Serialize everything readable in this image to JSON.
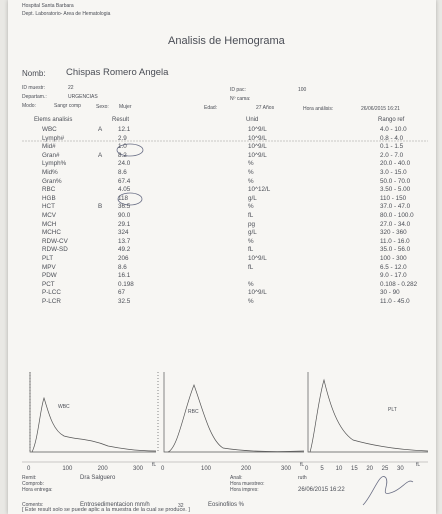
{
  "header": {
    "hospital": "Hospital Santa Barbara",
    "department": "Dept. Laboratorio- Area de Hematologia",
    "title": "Analisis de Hemograma"
  },
  "patient": {
    "name_label": "Nomb:",
    "name": "Chispas Romero Angela",
    "sample_id_label": "ID muestr:",
    "sample_id": "22",
    "patient_id_label": "ID pac:",
    "patient_id": "100",
    "dept_label": "Departam.:",
    "dept": "URGENCIAS",
    "bed_label": "Nº cama:",
    "mode_label": "Modo:",
    "mode": "Sangr comp",
    "sex_label": "Sexo:",
    "sex": "Mujer",
    "age_label": "Edad:",
    "age": "27 Años",
    "time_label": "Hora análisis:",
    "time": "26/06/2015 16:21"
  },
  "table": {
    "columns": [
      "Elems analisis",
      "Result",
      "Unid",
      "Rango ref"
    ],
    "rows": [
      {
        "item": "WBC",
        "flag": "A",
        "result": "12.1",
        "unit": "10^9/L",
        "range": "4.0 - 10.0"
      },
      {
        "item": "Lymph#",
        "result": "2.9",
        "unit": "10^9/L",
        "range": "0.8 - 4.0"
      },
      {
        "item": "Mid#",
        "result": "1.0",
        "unit": "10^9/L",
        "range": "0.1 - 1.5"
      },
      {
        "item": "Gran#",
        "flag": "A",
        "result": "8.2",
        "unit": "10^9/L",
        "range": "2.0 - 7.0"
      },
      {
        "item": "Lymph%",
        "result": "24.0",
        "unit": "%",
        "range": "20.0 - 40.0"
      },
      {
        "item": "Mid%",
        "result": "8.6",
        "unit": "%",
        "range": "3.0 - 15.0"
      },
      {
        "item": "Gran%",
        "result": "67.4",
        "unit": "%",
        "range": "50.0 - 70.0"
      },
      {
        "item": "RBC",
        "result": "4.05",
        "unit": "10^12/L",
        "range": "3.50 - 5.00"
      },
      {
        "item": "HGB",
        "result": "118",
        "unit": "g/L",
        "range": "110 - 150"
      },
      {
        "item": "HCT",
        "flag": "B",
        "result": "36.5",
        "unit": "%",
        "range": "37.0 - 47.0"
      },
      {
        "item": "MCV",
        "result": "90.0",
        "unit": "fL",
        "range": "80.0 - 100.0"
      },
      {
        "item": "MCH",
        "result": "29.1",
        "unit": "pg",
        "range": "27.0 - 34.0"
      },
      {
        "item": "MCHC",
        "result": "324",
        "unit": "g/L",
        "range": "320 - 360"
      },
      {
        "item": "RDW-CV",
        "result": "13.7",
        "unit": "%",
        "range": "11.0 - 16.0"
      },
      {
        "item": "RDW-SD",
        "result": "49.2",
        "unit": "fL",
        "range": "35.0 - 56.0"
      },
      {
        "item": "PLT",
        "result": "206",
        "unit": "10^9/L",
        "range": "100 - 300"
      },
      {
        "item": "MPV",
        "result": "8.6",
        "unit": "fL",
        "range": "6.5 - 12.0"
      },
      {
        "item": "PDW",
        "result": "16.1",
        "range": "9.0 - 17.0"
      },
      {
        "item": "PCT",
        "result": "0.198",
        "unit": "%",
        "range": "0.108 - 0.282"
      },
      {
        "item": "P-LCC",
        "result": "67",
        "unit": "10^9/L",
        "range": "30 - 90"
      },
      {
        "item": "P-LCR",
        "result": "32.5",
        "unit": "%",
        "range": "11.0 - 45.0"
      }
    ]
  },
  "histograms": [
    {
      "label": "WBC",
      "ticks": [
        "0",
        "100",
        "200",
        "300"
      ],
      "unit": "fL"
    },
    {
      "label": "RBC",
      "ticks": [
        "0",
        "100",
        "200",
        "300"
      ],
      "unit": "fL"
    },
    {
      "label": "PLT",
      "ticks": [
        "0",
        "5",
        "10",
        "15",
        "20",
        "25",
        "30"
      ],
      "unit": "fL"
    }
  ],
  "footer": {
    "sender_label": "Remit:",
    "sender": "Dra Salguero",
    "analyst_label": "Anali:",
    "analyst": "ruth",
    "check_label": "Comprob:",
    "sample_time_label": "Hora muestreo:",
    "delivery_label": "Hora entrega:",
    "print_label": "Hora impres:",
    "print_time": "26/06/2015 16:22",
    "comments_label": "Coments:",
    "esr_label": "Entrosedimentacion mm/h",
    "esr": "32",
    "eos_label": "Eosinofilos %",
    "note": "[ Este result solo se puede aplic a la muestra de la cual se produce. ]"
  }
}
